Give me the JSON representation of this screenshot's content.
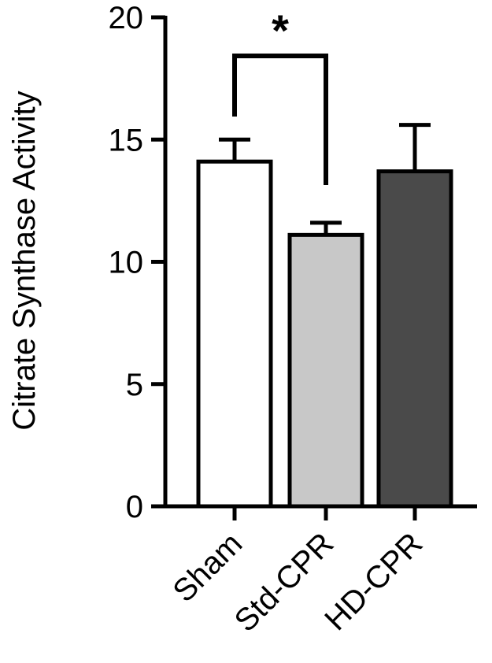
{
  "chart_data": {
    "type": "bar",
    "title": "",
    "xlabel": "",
    "ylabel": "Citrate Synthase Activity",
    "ylim": [
      0,
      20
    ],
    "yticks": [
      0,
      5,
      10,
      15,
      20
    ],
    "ytick_labels": [
      "0",
      "5",
      "10",
      "15",
      "20"
    ],
    "grid": false,
    "categories": [
      "Sham",
      "Std-CPR",
      "HD-CPR"
    ],
    "values": [
      14.1,
      11.1,
      13.7
    ],
    "errors": [
      0.9,
      0.5,
      1.9
    ],
    "bar_colors": [
      "#ffffff",
      "#c8c8c8",
      "#4a4a4a"
    ],
    "significance": [
      {
        "between": [
          "Sham",
          "Std-CPR"
        ],
        "label": "*"
      }
    ]
  }
}
